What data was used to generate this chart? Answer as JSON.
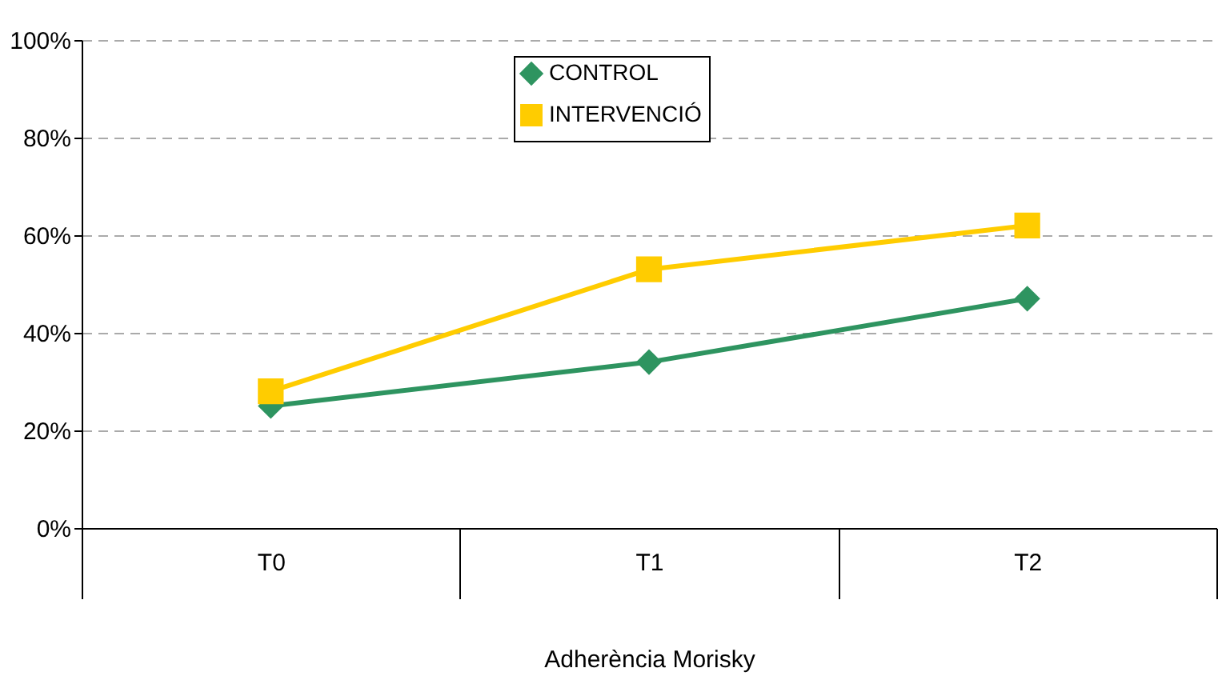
{
  "chart_data": {
    "type": "line",
    "xlabel": "Adherència Morisky",
    "categories": [
      "T0",
      "T1",
      "T2"
    ],
    "series": [
      {
        "name": "CONTROL",
        "color": "#2e9460",
        "marker": "diamond",
        "values": [
          25,
          34,
          47
        ]
      },
      {
        "name": "INTERVENCIÓ",
        "color": "#ffcc00",
        "marker": "square",
        "values": [
          28,
          53,
          62
        ]
      }
    ],
    "ylim": [
      0,
      100
    ],
    "yticks": [
      {
        "value": 0,
        "label": "0%"
      },
      {
        "value": 20,
        "label": "20%"
      },
      {
        "value": 40,
        "label": "40%"
      },
      {
        "value": 60,
        "label": "60%"
      },
      {
        "value": 80,
        "label": "80%"
      },
      {
        "value": 100,
        "label": "100%"
      }
    ],
    "grid": "y",
    "legend": "top",
    "line_style": "solid"
  }
}
